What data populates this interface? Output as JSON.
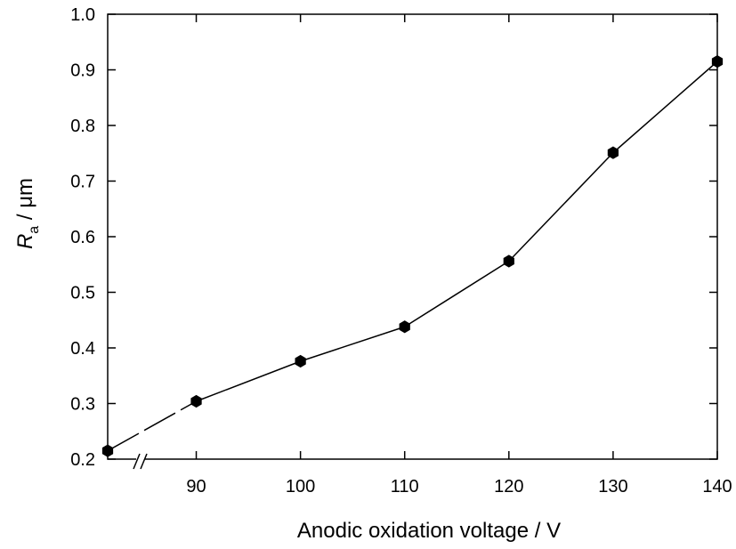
{
  "chart_data": {
    "type": "line",
    "xlabel": "Anodic oxidation voltage / V",
    "ylabel": {
      "symbol": "R",
      "subscript": "a",
      "unit": " / μm"
    },
    "xlim": [
      81.5,
      140
    ],
    "ylim": [
      0.2,
      1.0
    ],
    "x_ticks": [
      90,
      100,
      110,
      120,
      130,
      140
    ],
    "y_ticks": [
      "0.2",
      "0.3",
      "0.4",
      "0.5",
      "0.6",
      "0.7",
      "0.8",
      "0.9",
      "1.0"
    ],
    "axis_break": "x",
    "grid": false,
    "legend": "none",
    "series": [
      {
        "x": [
          81.5,
          90,
          100,
          110,
          120,
          130,
          140
        ],
        "y": [
          0.215,
          0.304,
          0.376,
          0.438,
          0.556,
          0.751,
          0.915
        ],
        "color": "#000000",
        "marker": "hexagon"
      }
    ]
  }
}
